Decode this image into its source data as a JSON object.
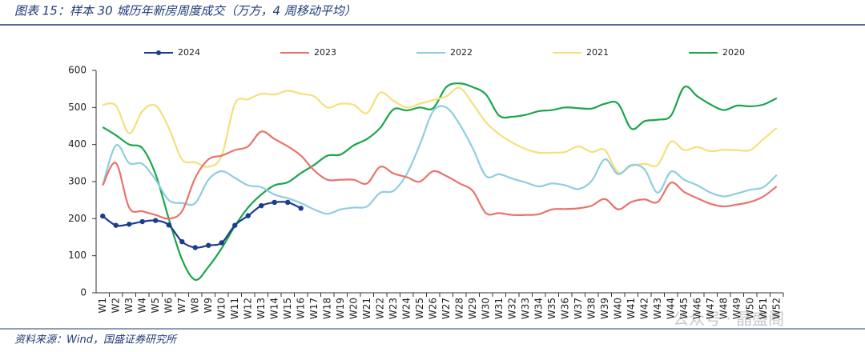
{
  "chart_data": {
    "type": "line",
    "title": "图表 15：样本 30 城历年新房周度成交（万方，4 周移动平均）",
    "source": "资料来源：Wind，国盛证券研究所",
    "watermark": "公众号 · 晶盛阁",
    "categories": [
      "W1",
      "W2",
      "W3",
      "W4",
      "W5",
      "W6",
      "W7",
      "W8",
      "W9",
      "W10",
      "W11",
      "W12",
      "W13",
      "W14",
      "W15",
      "W16",
      "W17",
      "W18",
      "W19",
      "W20",
      "W21",
      "W22",
      "W23",
      "W24",
      "W25",
      "W26",
      "W27",
      "W28",
      "W29",
      "W30",
      "W31",
      "W32",
      "W33",
      "W34",
      "W35",
      "W36",
      "W37",
      "W38",
      "W39",
      "W40",
      "W41",
      "W42",
      "W43",
      "W44",
      "W45",
      "W46",
      "W47",
      "W48",
      "W49",
      "W50",
      "W51",
      "W52"
    ],
    "ylim": [
      0,
      600
    ],
    "yticks": [
      0,
      100,
      200,
      300,
      400,
      500,
      600
    ],
    "legend": "top",
    "series": [
      {
        "name": "2024",
        "color": "#1a3e8c",
        "markers": true,
        "values": [
          207,
          182,
          185,
          192,
          195,
          183,
          138,
          122,
          128,
          135,
          182,
          208,
          235,
          244,
          244,
          228,
          null,
          null,
          null,
          null,
          null,
          null,
          null,
          null,
          null,
          null,
          null,
          null,
          null,
          null,
          null,
          null,
          null,
          null,
          null,
          null,
          null,
          null,
          null,
          null,
          null,
          null,
          null,
          null,
          null,
          null,
          null,
          null,
          null,
          null,
          null,
          null
        ]
      },
      {
        "name": "2023",
        "color": "#e8736c",
        "values": [
          290,
          350,
          230,
          220,
          210,
          200,
          220,
          310,
          360,
          370,
          385,
          395,
          435,
          415,
          395,
          370,
          330,
          305,
          305,
          305,
          295,
          340,
          322,
          312,
          300,
          328,
          315,
          295,
          275,
          215,
          215,
          210,
          210,
          212,
          225,
          226,
          228,
          235,
          253,
          225,
          245,
          252,
          245,
          297,
          272,
          255,
          240,
          233,
          238,
          245,
          260,
          287
        ]
      },
      {
        "name": "2022",
        "color": "#8ecde0",
        "values": [
          290,
          398,
          350,
          348,
          305,
          250,
          242,
          242,
          305,
          328,
          310,
          290,
          285,
          265,
          255,
          242,
          225,
          213,
          225,
          230,
          233,
          270,
          275,
          320,
          400,
          490,
          500,
          455,
          390,
          315,
          320,
          308,
          298,
          287,
          295,
          290,
          280,
          302,
          360,
          320,
          345,
          333,
          270,
          327,
          305,
          290,
          270,
          260,
          268,
          278,
          285,
          318
        ]
      },
      {
        "name": "2021",
        "color": "#f5e07a",
        "values": [
          507,
          505,
          430,
          490,
          505,
          445,
          360,
          352,
          340,
          370,
          510,
          522,
          537,
          535,
          545,
          537,
          530,
          500,
          510,
          507,
          485,
          540,
          518,
          500,
          510,
          520,
          530,
          553,
          510,
          460,
          428,
          405,
          388,
          378,
          378,
          380,
          395,
          380,
          385,
          325,
          342,
          348,
          345,
          408,
          385,
          393,
          382,
          386,
          385,
          385,
          415,
          445
        ]
      },
      {
        "name": "2020",
        "color": "#1aa64a",
        "values": [
          447,
          425,
          400,
          390,
          320,
          200,
          90,
          35,
          70,
          120,
          180,
          230,
          265,
          290,
          298,
          323,
          345,
          370,
          373,
          398,
          415,
          445,
          495,
          492,
          500,
          498,
          555,
          565,
          555,
          535,
          478,
          475,
          480,
          490,
          493,
          500,
          498,
          497,
          510,
          510,
          443,
          463,
          467,
          478,
          555,
          530,
          508,
          493,
          505,
          503,
          508,
          525
        ]
      }
    ]
  }
}
